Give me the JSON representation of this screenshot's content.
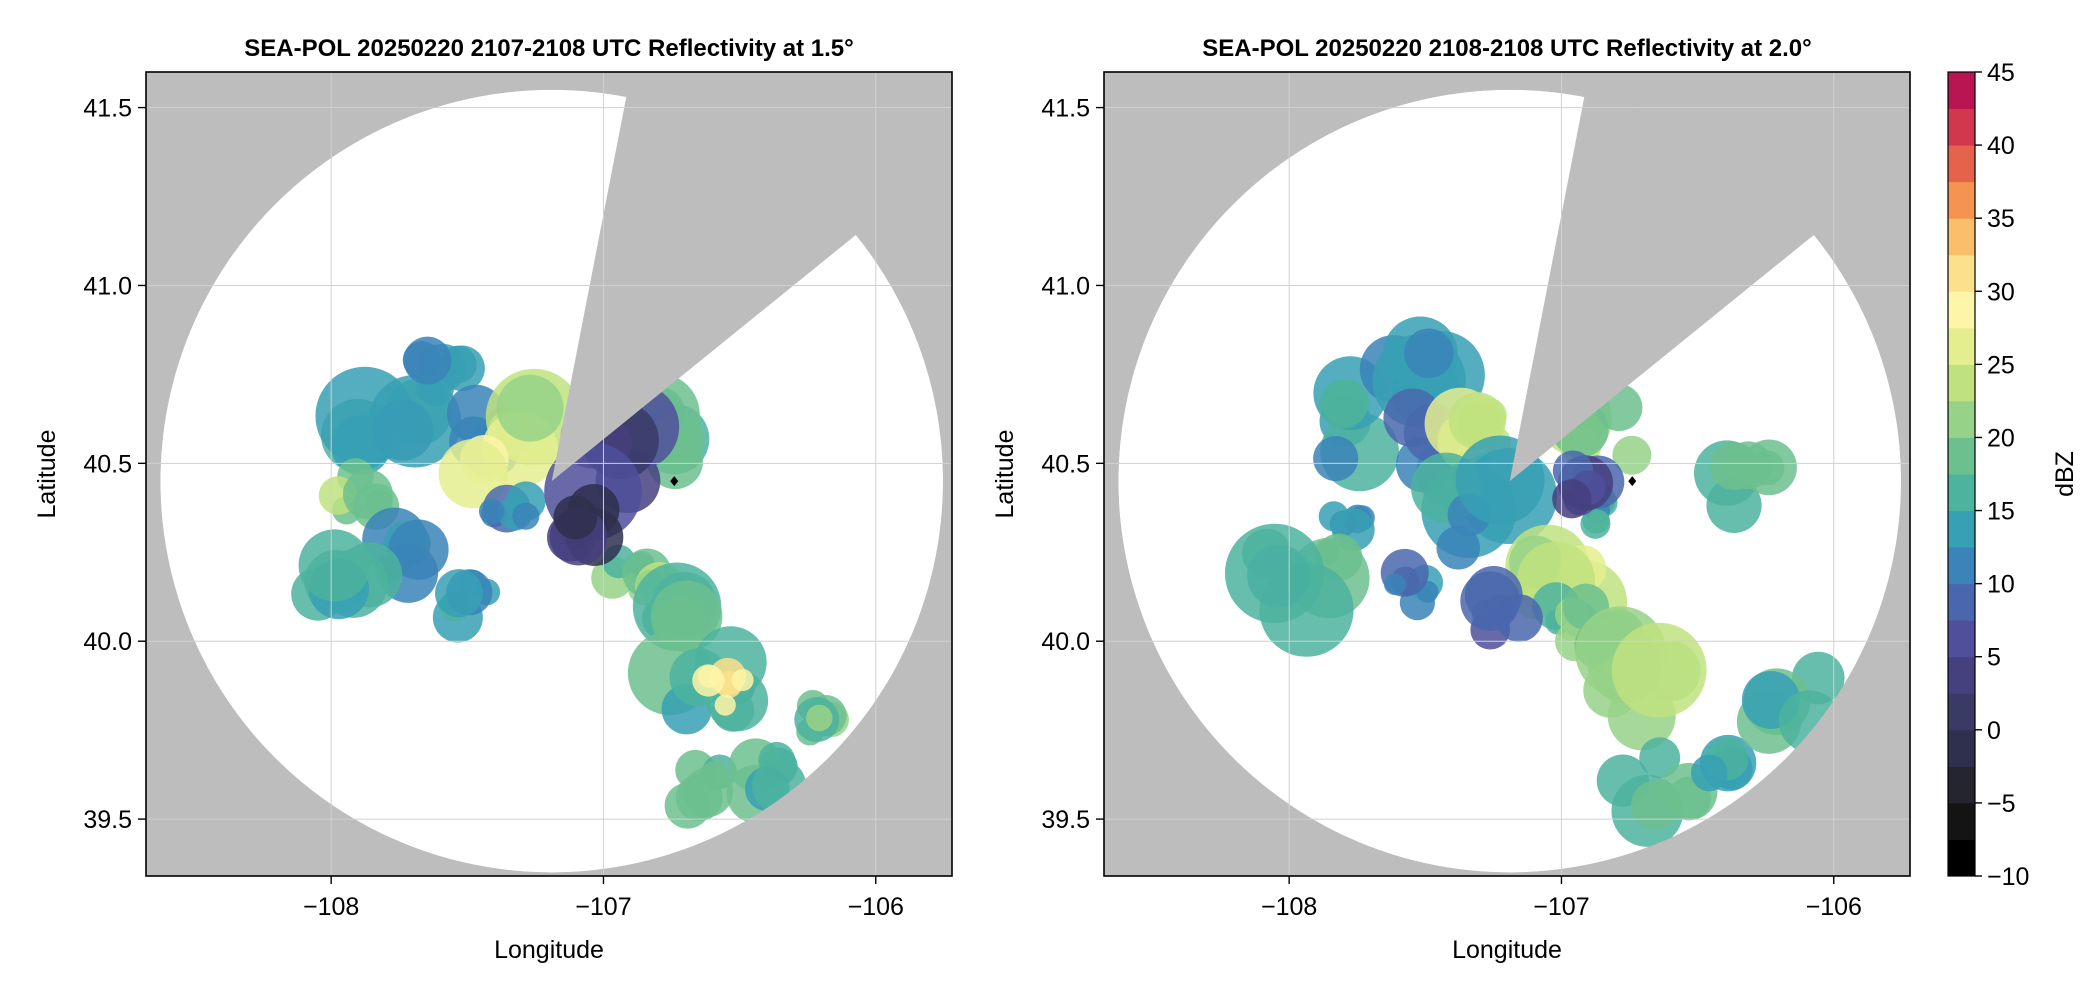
{
  "colors": {
    "missing_background": "#bdbdbd",
    "no_echo": "#ffffff",
    "grid": "#d0d0d0",
    "radar_marker": "#000000"
  },
  "chart_data": [
    {
      "type": "heatmap",
      "title": "SEA-POL 20250220 2107-2108 UTC Reflectivity at 1.5°",
      "xlabel": "Longitude",
      "ylabel": "Latitude",
      "xlim": [
        -108.68,
        -105.72
      ],
      "ylim": [
        39.34,
        41.6
      ],
      "xticks": [
        -108,
        -107,
        -106
      ],
      "xtick_labels": [
        "−108",
        "−107",
        "−106"
      ],
      "yticks": [
        39.5,
        40.0,
        40.5,
        41.0,
        41.5
      ],
      "ytick_labels": [
        "39.5",
        "40.0",
        "40.5",
        "41.0",
        "41.5"
      ],
      "grid": true,
      "radar_center": [
        -107.19,
        40.45
      ],
      "radar_range_deg_lat": 1.1,
      "blocked_sector_azimuth_deg": [
        11,
        51
      ],
      "marker": [
        -106.74,
        40.45
      ],
      "echo_regions": [
        {
          "lon": -107.8,
          "lat": 40.55,
          "dbz": 15
        },
        {
          "lon": -107.6,
          "lat": 40.75,
          "dbz": 14
        },
        {
          "lon": -107.45,
          "lat": 40.58,
          "dbz": 12
        },
        {
          "lon": -107.35,
          "lat": 40.57,
          "dbz": 25
        },
        {
          "lon": -107.9,
          "lat": 40.4,
          "dbz": 20
        },
        {
          "lon": -107.7,
          "lat": 40.25,
          "dbz": 11
        },
        {
          "lon": -107.95,
          "lat": 40.2,
          "dbz": 16
        },
        {
          "lon": -107.5,
          "lat": 40.12,
          "dbz": 14
        },
        {
          "lon": -107.35,
          "lat": 40.35,
          "dbz": 12
        },
        {
          "lon": -106.9,
          "lat": 40.2,
          "dbz": 18
        },
        {
          "lon": -106.8,
          "lat": 40.1,
          "dbz": 22
        },
        {
          "lon": -106.7,
          "lat": 40.0,
          "dbz": 18
        },
        {
          "lon": -106.6,
          "lat": 39.88,
          "dbz": 15
        },
        {
          "lon": -106.55,
          "lat": 39.86,
          "dbz": 30
        },
        {
          "lon": -106.2,
          "lat": 39.77,
          "dbz": 19
        },
        {
          "lon": -106.85,
          "lat": 40.55,
          "dbz": 18
        },
        {
          "lon": -106.95,
          "lat": 40.52,
          "dbz": 5
        },
        {
          "lon": -107.05,
          "lat": 40.35,
          "dbz": 2
        },
        {
          "lon": -106.65,
          "lat": 39.58,
          "dbz": 17
        },
        {
          "lon": -106.4,
          "lat": 39.62,
          "dbz": 16
        }
      ]
    },
    {
      "type": "heatmap",
      "title": "SEA-POL 20250220 2108-2108 UTC Reflectivity at 2.0°",
      "xlabel": "Longitude",
      "ylabel": "Latitude",
      "xlim": [
        -108.68,
        -105.72
      ],
      "ylim": [
        39.34,
        41.6
      ],
      "xticks": [
        -108,
        -107,
        -106
      ],
      "xtick_labels": [
        "−108",
        "−107",
        "−106"
      ],
      "yticks": [
        39.5,
        40.0,
        40.5,
        41.0,
        41.5
      ],
      "ytick_labels": [
        "39.5",
        "40.0",
        "40.5",
        "41.0",
        "41.5"
      ],
      "grid": true,
      "radar_center": [
        -107.19,
        40.45
      ],
      "radar_range_deg_lat": 1.1,
      "blocked_sector_azimuth_deg": [
        11,
        51
      ],
      "marker": [
        -106.74,
        40.45
      ],
      "echo_regions": [
        {
          "lon": -107.75,
          "lat": 40.6,
          "dbz": 15
        },
        {
          "lon": -107.55,
          "lat": 40.72,
          "dbz": 13
        },
        {
          "lon": -107.45,
          "lat": 40.55,
          "dbz": 10
        },
        {
          "lon": -107.35,
          "lat": 40.58,
          "dbz": 25
        },
        {
          "lon": -107.8,
          "lat": 40.3,
          "dbz": 12
        },
        {
          "lon": -107.95,
          "lat": 40.18,
          "dbz": 16
        },
        {
          "lon": -107.55,
          "lat": 40.15,
          "dbz": 11
        },
        {
          "lon": -107.3,
          "lat": 40.35,
          "dbz": 13
        },
        {
          "lon": -107.0,
          "lat": 40.2,
          "dbz": 24
        },
        {
          "lon": -106.95,
          "lat": 40.05,
          "dbz": 18
        },
        {
          "lon": -106.8,
          "lat": 39.95,
          "dbz": 17
        },
        {
          "lon": -106.7,
          "lat": 39.88,
          "dbz": 21
        },
        {
          "lon": -106.85,
          "lat": 40.35,
          "dbz": 15
        },
        {
          "lon": -106.85,
          "lat": 40.58,
          "dbz": 22
        },
        {
          "lon": -106.95,
          "lat": 40.45,
          "dbz": 6
        },
        {
          "lon": -107.2,
          "lat": 40.1,
          "dbz": 8
        },
        {
          "lon": -106.3,
          "lat": 40.45,
          "dbz": 18
        },
        {
          "lon": -106.65,
          "lat": 39.6,
          "dbz": 17
        },
        {
          "lon": -106.45,
          "lat": 39.62,
          "dbz": 16
        },
        {
          "lon": -106.15,
          "lat": 39.83,
          "dbz": 17
        }
      ]
    }
  ],
  "colorbar": {
    "label": "dBZ",
    "range": [
      -10,
      45
    ],
    "step": 2.5,
    "ticks": [
      -10,
      -5,
      0,
      5,
      10,
      15,
      20,
      25,
      30,
      35,
      40,
      45
    ],
    "tick_labels": [
      "−10",
      "−5",
      "0",
      "5",
      "10",
      "15",
      "20",
      "25",
      "30",
      "35",
      "40",
      "45"
    ],
    "colors": [
      "#000000",
      "#141414",
      "#25252f",
      "#2f2f4e",
      "#3a3a66",
      "#45407e",
      "#4f4f9b",
      "#4a67ad",
      "#3a84b9",
      "#37a0b4",
      "#4cb39e",
      "#6cc08e",
      "#96d287",
      "#bfe27f",
      "#e4ee8f",
      "#fdf5a8",
      "#fde08b",
      "#fbbe6b",
      "#f59350",
      "#e5634a",
      "#d1384d",
      "#b81552",
      "#a80d5c",
      "#c8367f",
      "#e15c9e",
      "#ee88bc",
      "#d7a5cd",
      "#b48dbe",
      "#8e63a6",
      "#6b3f8a",
      "#4e1d6c",
      "#3a0a55"
    ]
  }
}
